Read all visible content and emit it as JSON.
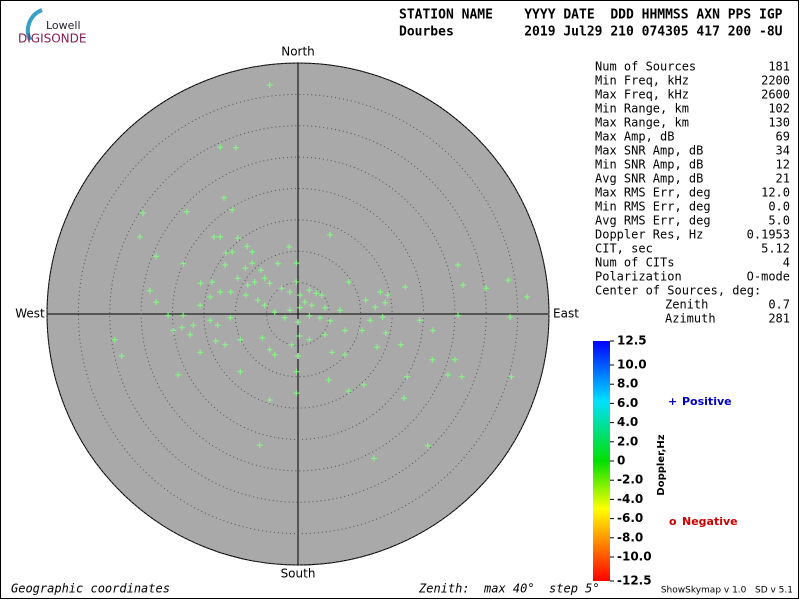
{
  "header": {
    "logo_top": "Lowell",
    "logo_bottom": "DIGISONDE",
    "line1": "STATION NAME    YYYY DATE  DDD HHMMSS AXN PPS IGP",
    "line2": "Dourbes         2019 Jul29 210 074305 417 200 -8U"
  },
  "stats": {
    "rows": [
      [
        "Num of Sources",
        "181"
      ],
      [
        "Min Freq, kHz",
        "2200"
      ],
      [
        "Max Freq, kHz",
        "2600"
      ],
      [
        "Min Range, km",
        "102"
      ],
      [
        "Max Range, km",
        "130"
      ],
      [
        "Max Amp, dB",
        "69"
      ],
      [
        "Max SNR Amp, dB",
        "34"
      ],
      [
        "Min SNR Amp, dB",
        "12"
      ],
      [
        "Avg SNR Amp, dB",
        "21"
      ],
      [
        "Max RMS Err, deg",
        "12.0"
      ],
      [
        "Min RMS Err, deg",
        "0.0"
      ],
      [
        "Avg RMS Err, deg",
        "5.0"
      ],
      [
        "Doppler Res, Hz",
        "0.1953"
      ],
      [
        "CIT, sec",
        "5.12"
      ],
      [
        "Num of CITs",
        "4"
      ],
      [
        "Polarization",
        "O-mode"
      ]
    ],
    "center_label": "Center of Sources, deg:",
    "center_rows": [
      [
        "Zenith",
        "0.7"
      ],
      [
        "Azimuth",
        "281"
      ]
    ]
  },
  "chart_data": {
    "type": "skymap",
    "north": "North",
    "south": "South",
    "east": "East",
    "west": "West",
    "xlim": [
      -40,
      40
    ],
    "ylim": [
      -40,
      40
    ],
    "rticks": [
      5,
      10,
      15,
      20,
      25,
      30,
      35,
      40
    ],
    "color": "#80ff80",
    "x": [
      -4.5,
      -12.4,
      -9.9,
      -11.8,
      -10.5,
      -24.7,
      -17.7,
      -25.2,
      -13.4,
      -12.4,
      -9.6,
      -8.1,
      -11.5,
      -10.5,
      -7.3,
      -1.4,
      5.1,
      -22.6,
      -18.3,
      -11.6,
      -8.4,
      -7.3,
      -5.9,
      -3.2,
      -0.2,
      -5.3,
      -9.6,
      -8.0,
      -6.9,
      -4.5,
      -2.6,
      -1.3,
      0.3,
      1.8,
      2.9,
      3.8,
      1.1,
      2.2,
      4.3,
      6.7,
      8.1,
      13.1,
      14.3,
      10.8,
      12.3,
      13.9,
      17.1,
      25.5,
      26.3,
      30.0,
      33.5,
      36.5,
      -23.6,
      -22.6,
      -20.7,
      -18.3,
      -19.9,
      -16.7,
      -15.6,
      -14.0,
      -12.4,
      -10.7,
      -8.3,
      -6.4,
      -5.3,
      -3.7,
      -2.1,
      -1.3,
      0.3,
      0.0,
      1.8,
      3.5,
      5.1,
      7.5,
      10.2,
      11.5,
      13.5,
      14.0,
      19.4,
      21.5,
      25.5,
      33.8,
      -10.8,
      -12.8,
      -14.0,
      -17.2,
      -18.5,
      -29.2,
      -28.1,
      -15.6,
      -13.1,
      -11.6,
      -9.2,
      -5.7,
      -4.5,
      -3.7,
      -1.0,
      0.2,
      1.8,
      4.3,
      5.4,
      7.5,
      12.6,
      16.4,
      21.4,
      25.0,
      23.9,
      26.1,
      34.0,
      17.4,
      -9.2,
      -0.2,
      4.9,
      8.1,
      10.5,
      -0.2,
      -4.5,
      16.9,
      -19.1,
      -6.1,
      12.1,
      20.7,
      -13.7,
      -15.5,
      -0.3,
      0.0
    ],
    "y": [
      36.5,
      26.6,
      26.5,
      18.5,
      16.6,
      16.1,
      16.3,
      12.3,
      12.3,
      12.3,
      12.1,
      10.8,
      9.7,
      9.9,
      9.9,
      10.7,
      12.6,
      9.2,
      8.0,
      7.8,
      7.3,
      8.1,
      7.0,
      8.0,
      8.1,
      5.7,
      5.7,
      4.6,
      5.1,
      4.9,
      4.1,
      3.5,
      3.0,
      3.8,
      3.3,
      3.0,
      1.9,
      1.4,
      1.0,
      0.6,
      5.1,
      3.5,
      3.0,
      2.2,
      1.1,
      1.8,
      4.3,
      7.8,
      4.6,
      4.1,
      5.4,
      2.7,
      3.7,
      1.9,
      -0.2,
      -0.2,
      -2.6,
      -1.8,
      1.4,
      2.7,
      3.5,
      3.5,
      3.0,
      2.2,
      1.4,
      0.3,
      -0.6,
      0.6,
      1.0,
      -1.3,
      -0.3,
      -0.6,
      -1.1,
      -2.6,
      -2.6,
      -1.0,
      -0.5,
      -3.0,
      -1.0,
      -2.6,
      -0.2,
      -0.5,
      -0.6,
      -1.8,
      -1.0,
      -3.3,
      -2.2,
      -4.1,
      -6.7,
      -6.1,
      -4.3,
      -4.9,
      -4.1,
      -3.8,
      -5.7,
      -6.5,
      -4.9,
      -3.5,
      -4.1,
      -3.3,
      -6.1,
      -6.5,
      -5.3,
      -4.9,
      -7.3,
      -7.3,
      -9.7,
      -10.0,
      -10.0,
      -10.0,
      -9.2,
      -9.2,
      -10.5,
      -12.3,
      -11.3,
      -12.6,
      -13.7,
      -13.4,
      -9.7,
      -20.9,
      -23.0,
      -21.0,
      5.1,
      4.9,
      5.1,
      -6.7
    ],
    "colorbar": {
      "title": "Doppler,Hz",
      "lim": [
        -12.5,
        12.5
      ],
      "ticks": [
        12.5,
        {
          "value": 10,
          "label": "10.0"
        },
        {
          "value": 8,
          "label": "8.0"
        },
        {
          "value": 6,
          "label": "6.0"
        },
        {
          "value": 4,
          "label": "4.0"
        },
        {
          "value": 2,
          "label": "2.0"
        },
        0,
        {
          "value": -2,
          "label": "-2.0"
        },
        {
          "value": -4,
          "label": "-4.0"
        },
        {
          "value": -6,
          "label": "-6.0"
        },
        {
          "value": -8,
          "label": "-8.0"
        },
        {
          "value": -10,
          "label": "-10.0"
        },
        -12.5
      ],
      "positive_symbol": "+",
      "positive": "Positive",
      "negative_symbol": "o",
      "negative": "Negative"
    }
  },
  "footer": {
    "left": "Geographic coordinates",
    "center": "Zenith:  max 40°  step 5°",
    "right": "ShowSkymap v 1.0   SD v 5.1"
  }
}
